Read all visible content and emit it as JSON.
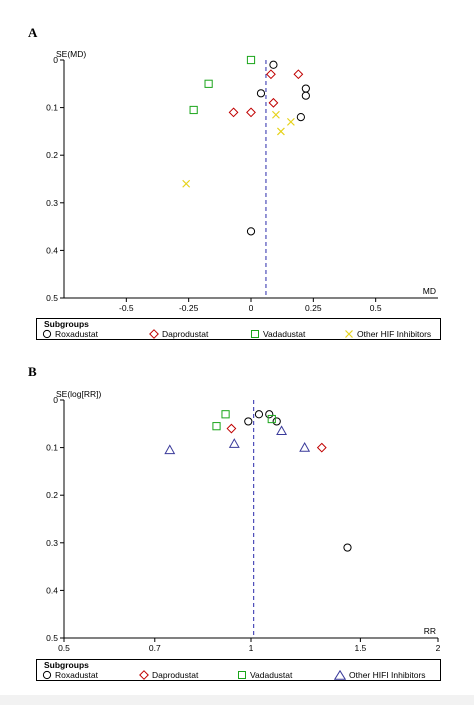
{
  "panels": [
    {
      "letter": "A",
      "legend": {
        "title": "Subgroups",
        "items": [
          "Roxadustat",
          "Daprodustat",
          "Vadadustat",
          "Other HIF Inhibitors"
        ]
      }
    },
    {
      "letter": "B",
      "legend": {
        "title": "Subgroups",
        "items": [
          "Roxadustat",
          "Daprodustat",
          "Vadadustat",
          "Other HIFI Inhibitors"
        ]
      }
    }
  ],
  "colors": {
    "roxadustat": "#000000",
    "daprodustat": "#c00000",
    "vadadustat": "#1aa51a",
    "other": "#e6d21a",
    "other_b": "#3a3a9a",
    "reference_line": "#2a2aaa"
  },
  "chart_data": [
    {
      "type": "scatter",
      "title": "",
      "xlabel": "MD",
      "ylabel": "SE(MD)",
      "xlim": [
        -0.75,
        0.75
      ],
      "ylim": [
        0,
        0.5
      ],
      "y_reversed": true,
      "x_ticks": [
        "-0.5",
        "-0.25",
        "0",
        "0.25",
        "0.5"
      ],
      "x_tick_values": [
        -0.5,
        -0.25,
        0,
        0.25,
        0.5
      ],
      "y_ticks": [
        "0",
        "0.1",
        "0.2",
        "0.3",
        "0.4",
        "0.5"
      ],
      "y_tick_values": [
        0,
        0.1,
        0.2,
        0.3,
        0.4,
        0.5
      ],
      "reference_line_x": 0.06,
      "series": [
        {
          "name": "Roxadustat",
          "marker": "circle",
          "points": [
            [
              0.09,
              0.01
            ],
            [
              0.04,
              0.07
            ],
            [
              0.22,
              0.06
            ],
            [
              0.22,
              0.075
            ],
            [
              0.2,
              0.12
            ],
            [
              0.0,
              0.36
            ]
          ]
        },
        {
          "name": "Daprodustat",
          "marker": "diamond",
          "points": [
            [
              0.08,
              0.03
            ],
            [
              0.19,
              0.03
            ],
            [
              0.09,
              0.09
            ],
            [
              -0.07,
              0.11
            ],
            [
              0.0,
              0.11
            ]
          ]
        },
        {
          "name": "Vadadustat",
          "marker": "square",
          "points": [
            [
              0.0,
              0.0
            ],
            [
              -0.17,
              0.05
            ],
            [
              -0.23,
              0.105
            ]
          ]
        },
        {
          "name": "Other HIF Inhibitors",
          "marker": "x",
          "points": [
            [
              0.1,
              0.115
            ],
            [
              0.16,
              0.13
            ],
            [
              0.12,
              0.15
            ],
            [
              -0.26,
              0.26
            ]
          ]
        }
      ]
    },
    {
      "type": "scatter",
      "title": "",
      "xlabel": "RR",
      "ylabel": "SE(log[RR])",
      "xlim": [
        0.5,
        2
      ],
      "x_scale": "log",
      "ylim": [
        0,
        0.5
      ],
      "y_reversed": true,
      "x_ticks": [
        "0.5",
        "0.7",
        "1",
        "1.5",
        "2"
      ],
      "x_tick_values": [
        0.5,
        0.7,
        1,
        1.5,
        2
      ],
      "y_ticks": [
        "0",
        "0.1",
        "0.2",
        "0.3",
        "0.4",
        "0.5"
      ],
      "y_tick_values": [
        0,
        0.1,
        0.2,
        0.3,
        0.4,
        0.5
      ],
      "reference_line_x": 1.01,
      "series": [
        {
          "name": "Roxadustat",
          "marker": "circle",
          "points": [
            [
              1.03,
              0.03
            ],
            [
              1.07,
              0.03
            ],
            [
              0.99,
              0.045
            ],
            [
              1.1,
              0.045
            ],
            [
              1.43,
              0.31
            ]
          ]
        },
        {
          "name": "Daprodustat",
          "marker": "diamond",
          "points": [
            [
              0.93,
              0.06
            ],
            [
              1.3,
              0.1
            ]
          ]
        },
        {
          "name": "Vadadustat",
          "marker": "square",
          "points": [
            [
              0.91,
              0.03
            ],
            [
              0.88,
              0.055
            ],
            [
              1.08,
              0.04
            ]
          ]
        },
        {
          "name": "Other HIFI Inhibitors",
          "marker": "triangle",
          "points": [
            [
              1.12,
              0.065
            ],
            [
              0.94,
              0.092
            ],
            [
              1.22,
              0.1
            ],
            [
              0.74,
              0.105
            ]
          ]
        }
      ]
    }
  ]
}
